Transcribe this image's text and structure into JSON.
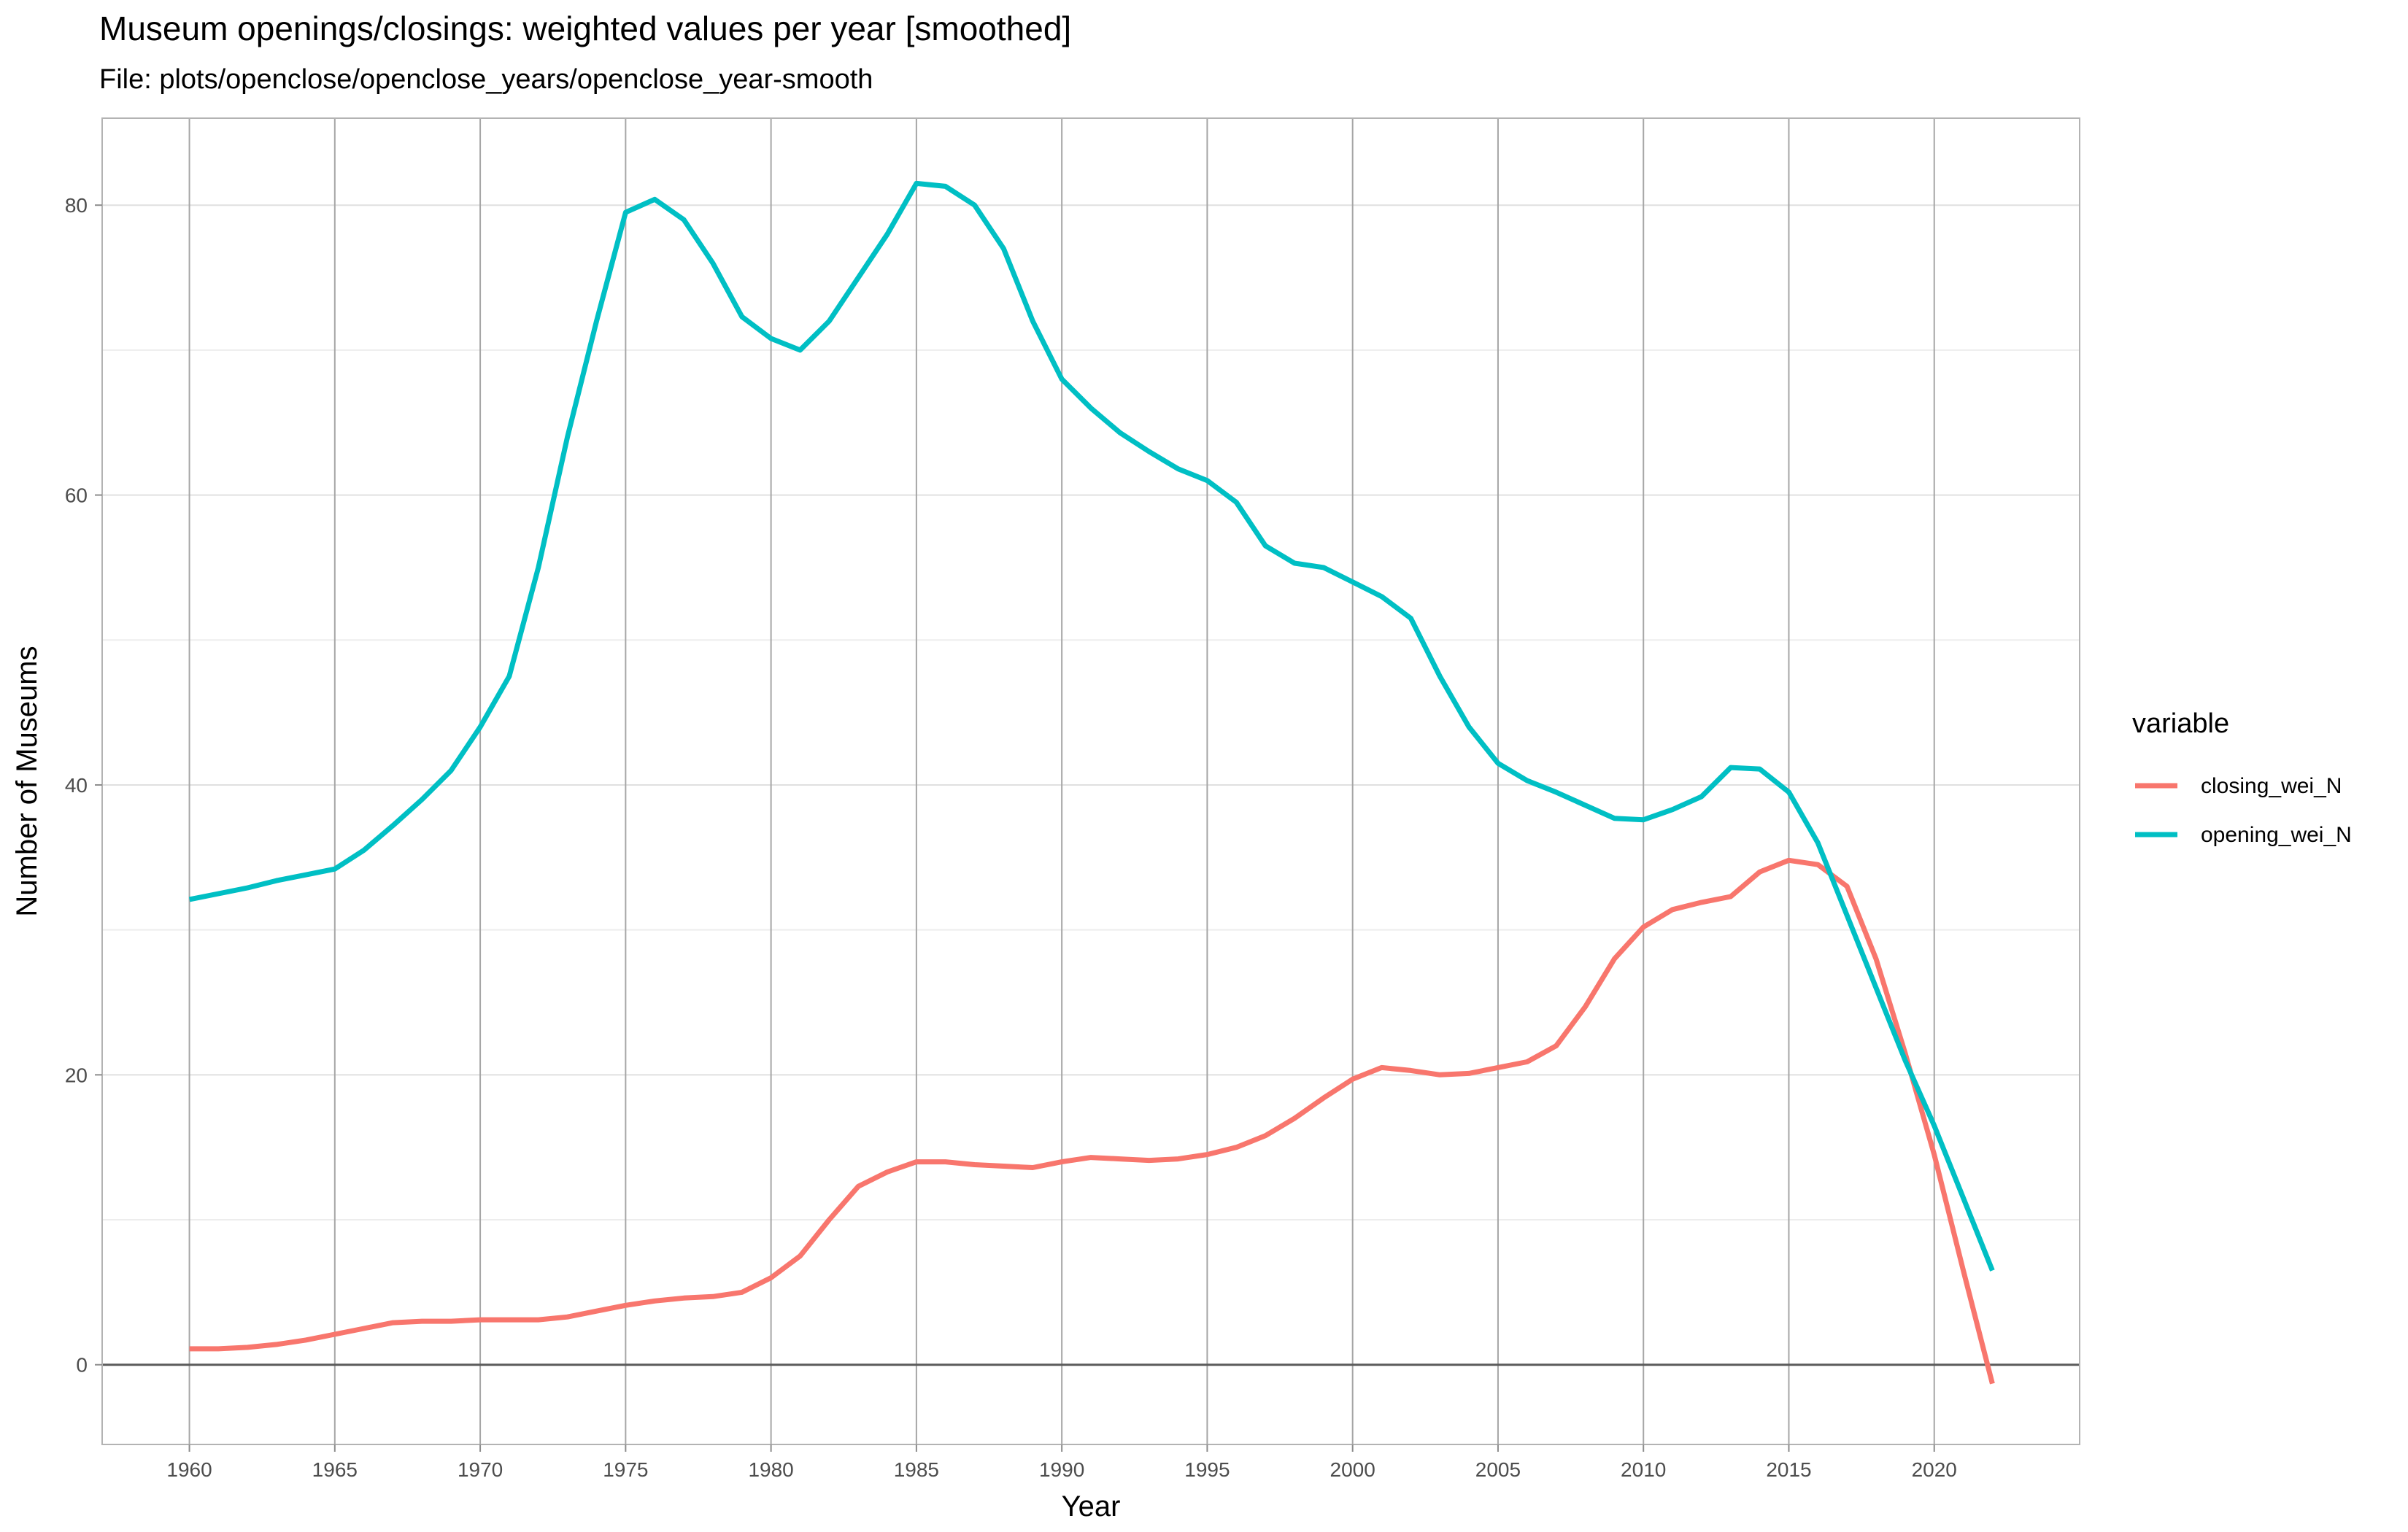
{
  "title": "Museum openings/closings: weighted values per year [smoothed]",
  "subtitle": "File: plots/openclose/openclose_years/openclose_year-smooth",
  "chart_data": {
    "type": "line",
    "xlabel": "Year",
    "ylabel": "Number of Museums",
    "xlim": [
      1957,
      2025
    ],
    "ylim": [
      -5.5,
      86
    ],
    "x_ticks": [
      1960,
      1965,
      1970,
      1975,
      1980,
      1985,
      1990,
      1995,
      2000,
      2005,
      2010,
      2015,
      2020
    ],
    "y_ticks": [
      0,
      20,
      40,
      60,
      80
    ],
    "grid": true,
    "legend": {
      "title": "variable",
      "position": "right"
    },
    "x": [
      1960,
      1961,
      1962,
      1963,
      1964,
      1965,
      1966,
      1967,
      1968,
      1969,
      1970,
      1971,
      1972,
      1973,
      1974,
      1975,
      1976,
      1977,
      1978,
      1979,
      1980,
      1981,
      1982,
      1983,
      1984,
      1985,
      1986,
      1987,
      1988,
      1989,
      1990,
      1991,
      1992,
      1993,
      1994,
      1995,
      1996,
      1997,
      1998,
      1999,
      2000,
      2001,
      2002,
      2003,
      2004,
      2005,
      2006,
      2007,
      2008,
      2009,
      2010,
      2011,
      2012,
      2013,
      2014,
      2015,
      2016,
      2017,
      2018,
      2019,
      2020,
      2021,
      2022
    ],
    "series": [
      {
        "name": "closing_wei_N",
        "color": "#F8766D",
        "values": [
          1.1,
          1.1,
          1.2,
          1.4,
          1.7,
          2.1,
          2.5,
          2.9,
          3.0,
          3.0,
          3.1,
          3.1,
          3.1,
          3.3,
          3.7,
          4.1,
          4.4,
          4.6,
          4.7,
          5.0,
          6.0,
          7.5,
          10.0,
          12.3,
          13.3,
          14.0,
          14.0,
          13.8,
          13.7,
          13.6,
          14.0,
          14.3,
          14.2,
          14.1,
          14.2,
          14.5,
          15.0,
          15.8,
          17.0,
          18.4,
          19.7,
          20.5,
          20.3,
          20.0,
          20.1,
          20.5,
          20.9,
          22.0,
          24.7,
          28.0,
          30.2,
          31.4,
          31.9,
          32.3,
          34.0,
          34.8,
          34.5,
          33.0,
          28.0,
          21.5,
          14.5,
          6.5,
          -1.3
        ]
      },
      {
        "name": "opening_wei_N",
        "color": "#00BFC4",
        "values": [
          32.1,
          32.5,
          32.9,
          33.4,
          33.8,
          34.2,
          35.5,
          37.2,
          39.0,
          41.0,
          44.0,
          47.5,
          55.0,
          64.0,
          72.0,
          79.5,
          80.4,
          79.0,
          76.0,
          72.3,
          70.8,
          70.0,
          72.0,
          75.0,
          78.0,
          81.5,
          81.3,
          80.0,
          77.0,
          72.0,
          68.0,
          66.0,
          64.3,
          63.0,
          61.8,
          61.0,
          59.5,
          56.5,
          55.3,
          55.0,
          54.0,
          53.0,
          51.5,
          47.5,
          44.0,
          41.5,
          40.3,
          39.5,
          38.6,
          37.7,
          37.6,
          38.3,
          39.2,
          41.2,
          41.1,
          39.5,
          36.0,
          31.0,
          26.0,
          21.0,
          16.5,
          11.5,
          6.5
        ]
      }
    ]
  }
}
